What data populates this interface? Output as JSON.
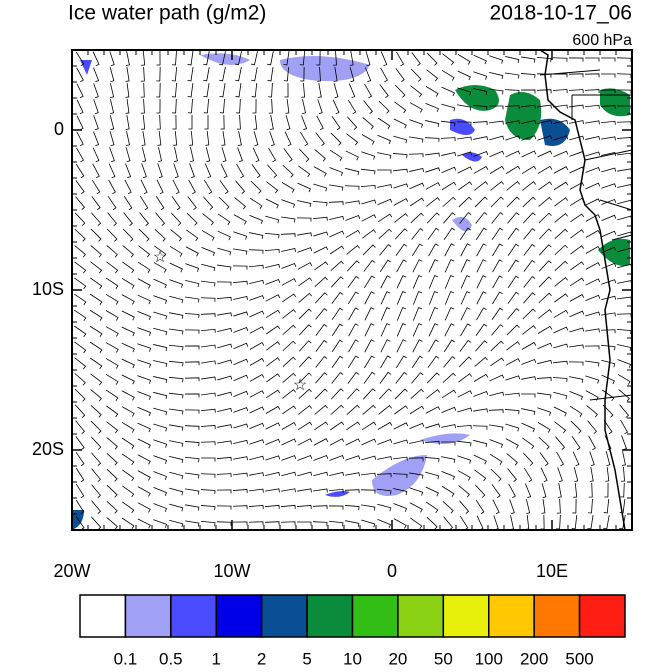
{
  "header": {
    "title": "Ice water path (g/m2)",
    "date": "2018-10-17_06",
    "level": "600 hPa"
  },
  "map": {
    "xlim": [
      -20,
      15
    ],
    "ylim": [
      -25,
      5
    ],
    "xticks": [
      {
        "value": -20,
        "label": "20W"
      },
      {
        "value": -10,
        "label": "10W"
      },
      0,
      {
        "value": 10,
        "label": "10E"
      }
    ],
    "yticks": [
      0,
      {
        "value": -10,
        "label": "10S"
      },
      {
        "value": -20,
        "label": "20S"
      }
    ]
  },
  "colorbar": {
    "colors": [
      "#ffffff",
      "#a0a0f5",
      "#4b4bff",
      "#0000e6",
      "#0a4f96",
      "#0a8c3c",
      "#32be14",
      "#8cd214",
      "#e6f00a",
      "#ffc800",
      "#ff7800",
      "#ff1e14"
    ],
    "levels": [
      0.1,
      0.5,
      1,
      2,
      5,
      10,
      20,
      50,
      100,
      200,
      500
    ]
  }
}
